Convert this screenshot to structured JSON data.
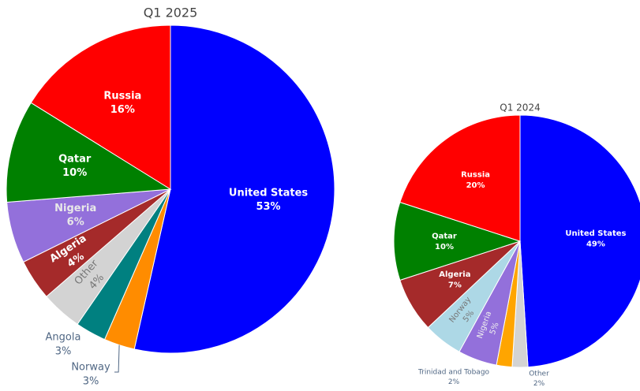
{
  "chart_data": [
    {
      "type": "pie",
      "title": "Q1 2025",
      "categories": [
        "United States",
        "Norway",
        "Angola",
        "Other",
        "Algeria",
        "Nigeria",
        "Qatar",
        "Russia"
      ],
      "values": [
        53,
        3,
        3,
        4,
        4,
        6,
        10,
        16
      ],
      "value_labels": [
        "53%",
        "3%",
        "3%",
        "4%",
        "4%",
        "6%",
        "10%",
        "16%"
      ],
      "colors": [
        "#0000ff",
        "#ff8c00",
        "#008080",
        "#d3d3d3",
        "#a52a2a",
        "#9370db",
        "#008000",
        "#ff0000"
      ]
    },
    {
      "type": "pie",
      "title": "Q1 2024",
      "categories": [
        "United States",
        "Other",
        "Trinidad and Tobago",
        "Nigeria",
        "Norway",
        "Algeria",
        "Qatar",
        "Russia"
      ],
      "values": [
        49,
        2,
        2,
        5,
        5,
        7,
        10,
        20
      ],
      "value_labels": [
        "49%",
        "2%",
        "2%",
        "5%",
        "5%",
        "7%",
        "10%",
        "20%"
      ],
      "colors": [
        "#0000ff",
        "#d3d3d3",
        "#ffa500",
        "#9370db",
        "#add8e6",
        "#a52a2a",
        "#008000",
        "#ff0000"
      ]
    }
  ]
}
